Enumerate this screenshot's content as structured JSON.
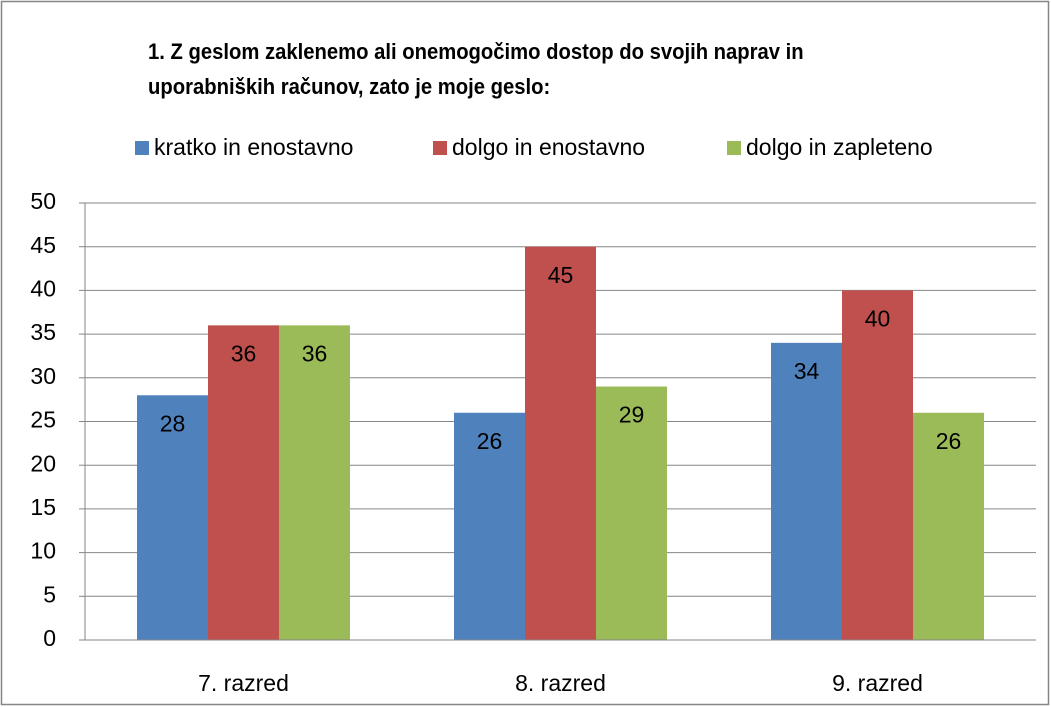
{
  "chart_data": {
    "type": "bar",
    "title": "1. Z geslom zaklenemo ali onemogočimo dostop do svojih naprav in uporabniških računov, zato je moje geslo:",
    "categories": [
      "7. razred",
      "8. razred",
      "9. razred"
    ],
    "series": [
      {
        "name": "kratko in enostavno",
        "color": "#4f81bd",
        "values": [
          28,
          26,
          34
        ]
      },
      {
        "name": "dolgo in enostavno",
        "color": "#c0504d",
        "values": [
          36,
          45,
          40
        ]
      },
      {
        "name": "dolgo in zapleteno",
        "color": "#9bbb59",
        "values": [
          36,
          29,
          26
        ]
      }
    ],
    "ylim": [
      0,
      50
    ],
    "yticks": [
      0,
      5,
      10,
      15,
      20,
      25,
      30,
      35,
      40,
      45,
      50
    ],
    "grid": true,
    "legend": "top"
  }
}
